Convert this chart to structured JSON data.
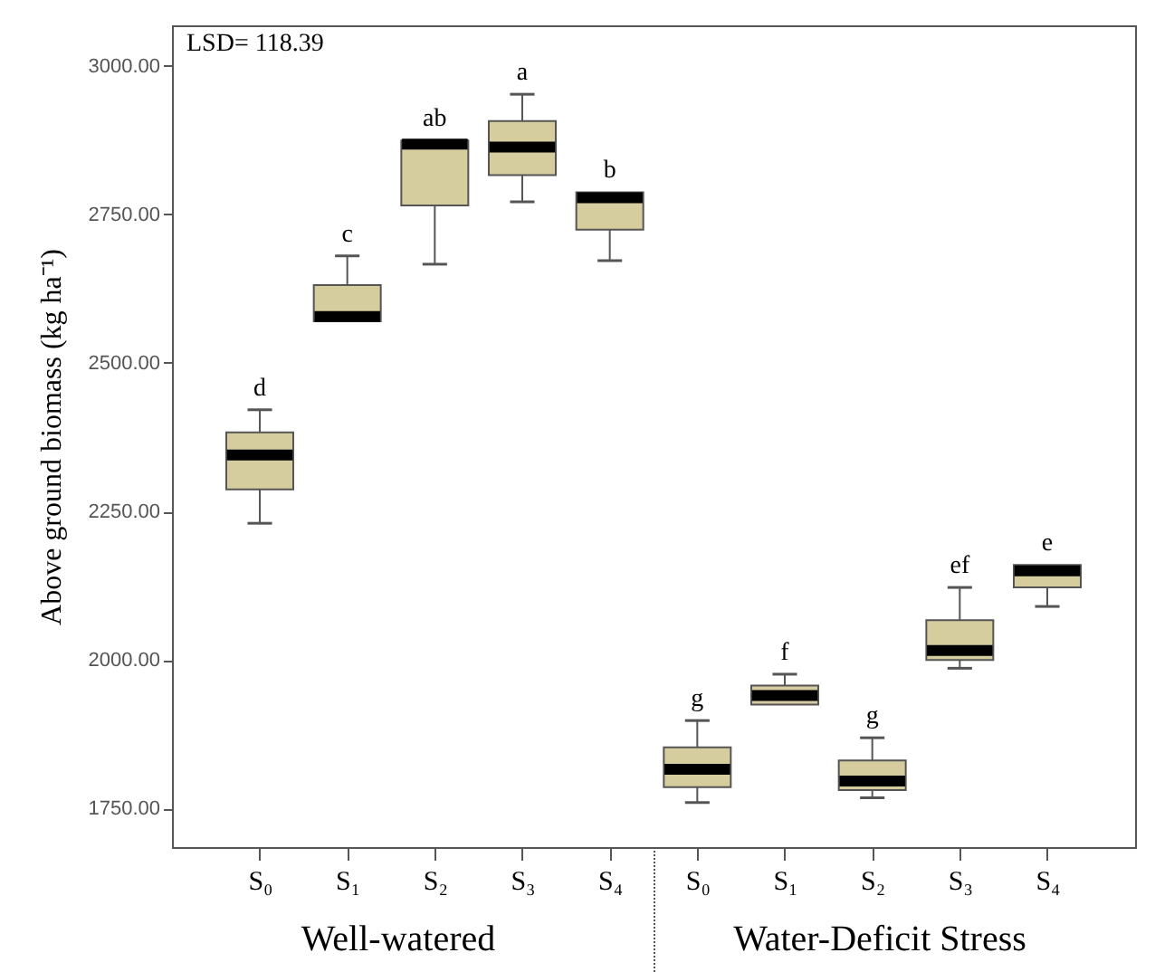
{
  "chart_data": {
    "type": "box",
    "ylabel": "Above ground biomass (kg ha⁻¹)",
    "categories": [
      "S₀",
      "S₁",
      "S₂",
      "S₃",
      "S₄",
      "S₀",
      "S₁",
      "S₂",
      "S₃",
      "S₄"
    ],
    "series": [
      {
        "color": "#d6cd9f",
        "boxes": [
          {
            "low": 2230,
            "q1": 2287,
            "median": 2345,
            "q3": 2383,
            "high": 2421
          },
          {
            "low": 2570,
            "q1": 2570,
            "median": 2578,
            "q3": 2631,
            "high": 2680
          },
          {
            "low": 2666,
            "q1": 2765,
            "median": 2868,
            "q3": 2874,
            "high": 2874
          },
          {
            "low": 2771,
            "q1": 2816,
            "median": 2863,
            "q3": 2907,
            "high": 2952
          },
          {
            "low": 2672,
            "q1": 2724,
            "median": 2778,
            "q3": 2787,
            "high": 2787
          },
          {
            "low": 1760,
            "q1": 1786,
            "median": 1816,
            "q3": 1853,
            "high": 1898
          },
          {
            "low": 1925,
            "q1": 1925,
            "median": 1940,
            "q3": 1957,
            "high": 1976
          },
          {
            "low": 1768,
            "q1": 1781,
            "median": 1796,
            "q3": 1831,
            "high": 1869
          },
          {
            "low": 1986,
            "q1": 2000,
            "median": 2016,
            "q3": 2067,
            "high": 2122
          },
          {
            "low": 2090,
            "q1": 2122,
            "median": 2150,
            "q3": 2160,
            "high": 2160
          }
        ]
      }
    ],
    "ylim": [
      1685,
      3068
    ],
    "yticks": [
      {
        "value": 1750,
        "label": "1750.00"
      },
      {
        "value": 2000,
        "label": "2000.00"
      },
      {
        "value": 2250,
        "label": "2250.00"
      },
      {
        "value": 2500,
        "label": "2500.00"
      },
      {
        "value": 2750,
        "label": "2750.00"
      },
      {
        "value": 3000,
        "label": "3000.00"
      }
    ],
    "grid": false,
    "annotations": [
      "LSD= 118.39",
      "Well-watered",
      "Water-Deficit Stress",
      "d",
      "c",
      "ab",
      "a",
      "b",
      "g",
      "f",
      "g",
      "ef",
      "e"
    ]
  }
}
